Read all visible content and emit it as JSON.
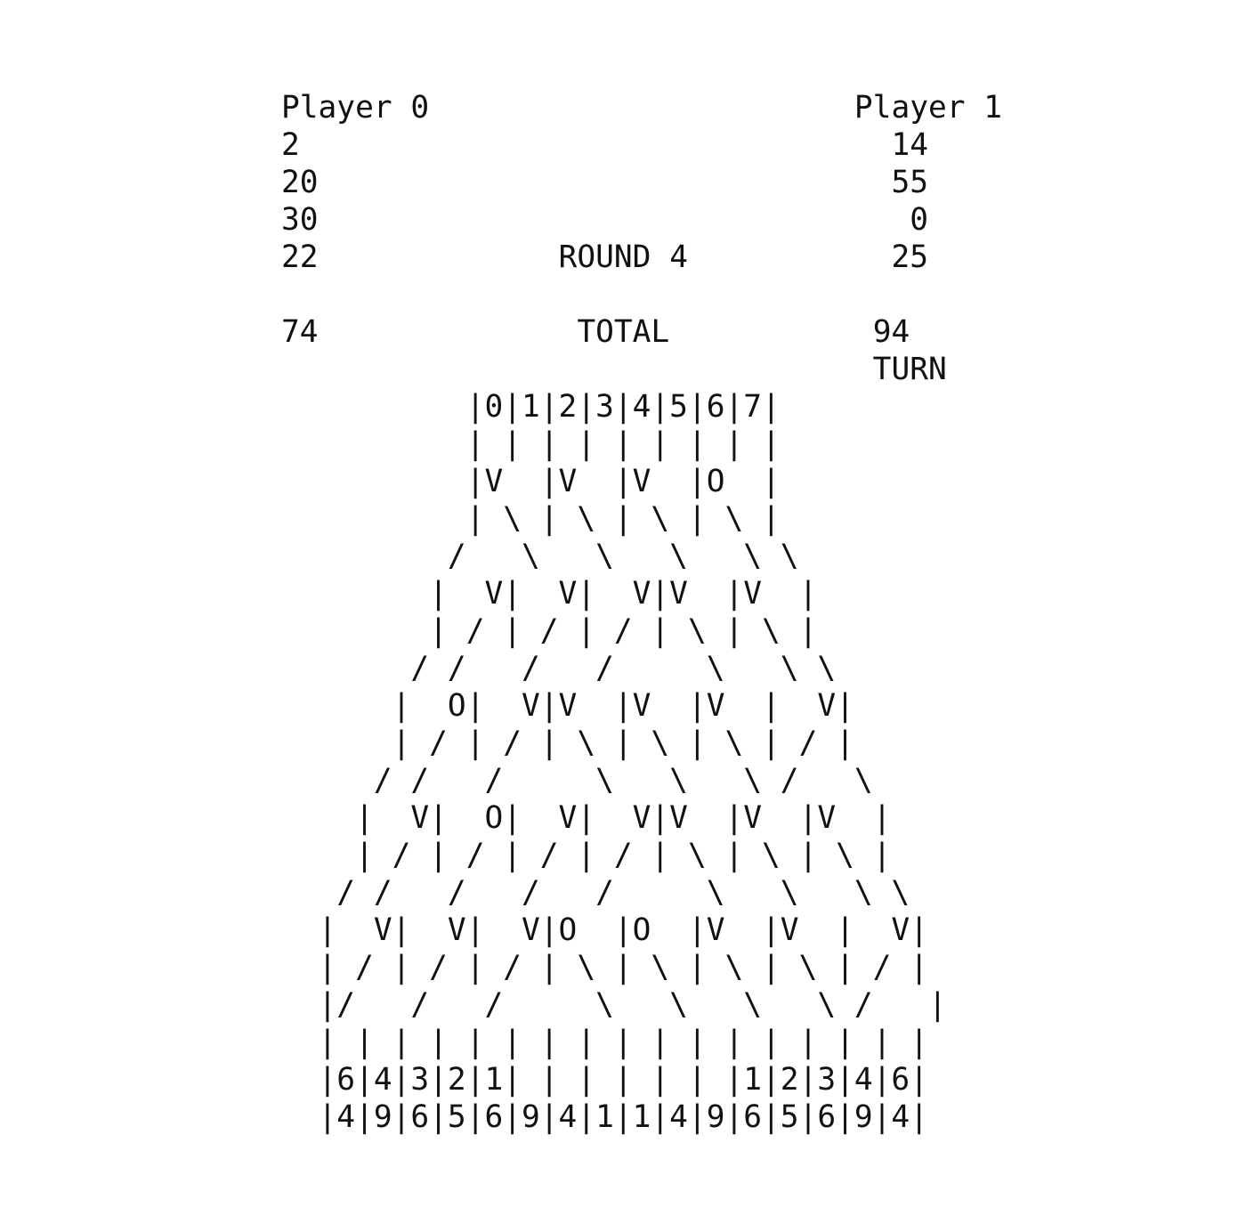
{
  "scoreboard": {
    "player0": {
      "name": "Player 0",
      "round_scores": [
        "2",
        "20",
        "30",
        "22"
      ],
      "total": "74"
    },
    "player1": {
      "name": "Player 1",
      "round_scores": [
        "14",
        "55",
        "0",
        "25"
      ],
      "total": "94"
    },
    "round_label": "ROUND 4",
    "total_label": "TOTAL",
    "turn_label": "TURN",
    "turn_player": "player1"
  },
  "board": {
    "lines": [
      "          |0|1|2|3|4|5|6|7|",
      "          | | | | | | | | |",
      "          |V  |V  |V  |O  |",
      "          | \\ | \\ | \\ | \\ |",
      "         /   \\   \\   \\   \\ \\",
      "        |  V|  V|  V|V  |V  |",
      "        | / | / | / | \\ | \\ |",
      "       / /   /   /     \\   \\ \\",
      "      |  O|  V|V  |V  |V  |  V|",
      "      | / | / | \\ | \\ | \\ | / |",
      "     / /   /     \\   \\   \\ /   \\",
      "    |  V|  O|  V|  V|V  |V  |V  |",
      "    | / | / | / | / | \\ | \\ | \\ |",
      "   / /   /   /   /     \\   \\   \\ \\",
      "  |  V|  V|  V|O  |O  |V  |V  |  V|",
      "  | / | / | / | \\ | \\ | \\ | \\ | / |",
      "  |/   /   /     \\   \\   \\   \\ /   |",
      "  | | | | | | | | | | | | | | | | |",
      "  |6|4|3|2|1| | | | | | |1|2|3|4|6|",
      "  |4|9|6|5|6|9|4|1|1|4|9|6|5|6|9|4|"
    ]
  }
}
